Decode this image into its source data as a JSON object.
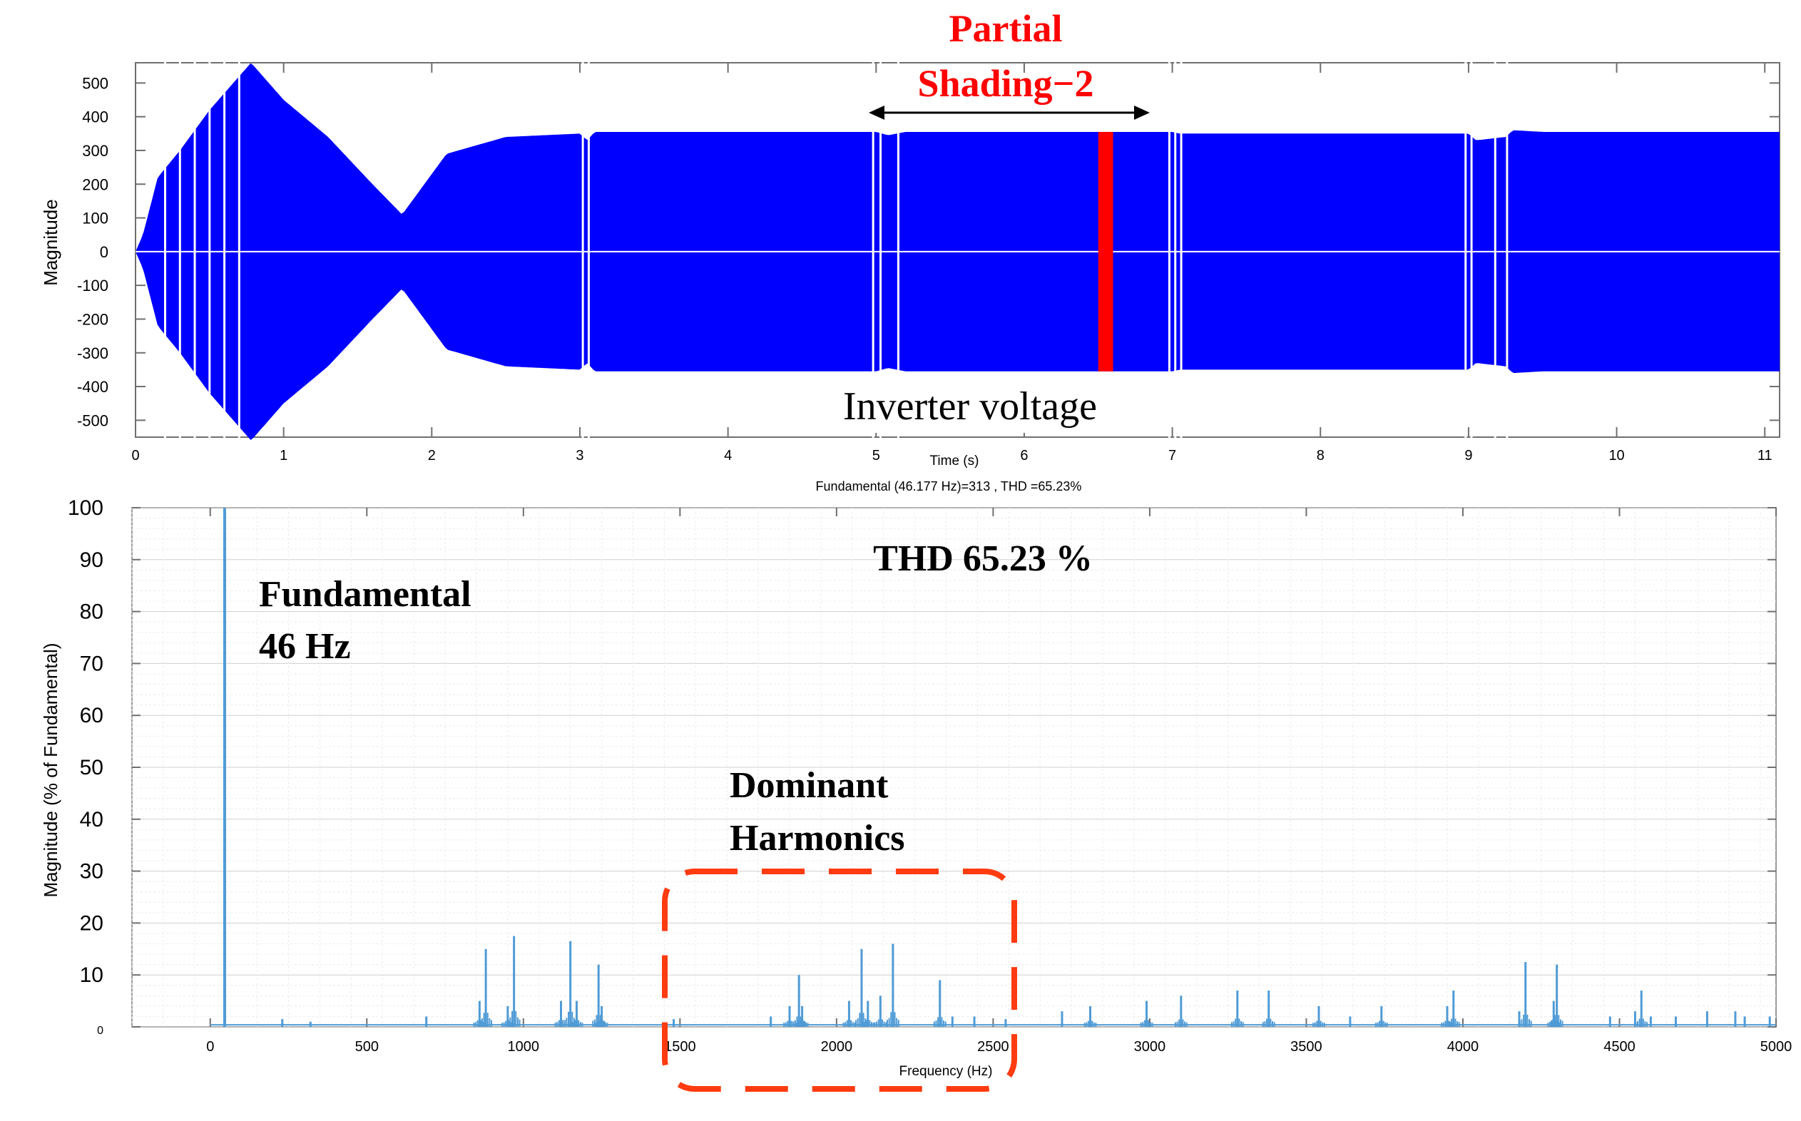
{
  "chart_data": [
    {
      "type": "line",
      "xlabel": "Time (s)",
      "ylabel": "Magnitude",
      "xlim": [
        0,
        11.1
      ],
      "ylim": [
        -550,
        560
      ],
      "xticks": [
        "0",
        "1",
        "2",
        "3",
        "4",
        "5",
        "6",
        "7",
        "8",
        "9",
        "10",
        "11"
      ],
      "yticks": [
        "500",
        "400",
        "300",
        "200",
        "100",
        "0",
        "-100",
        "-200",
        "-300",
        "-400",
        "-500"
      ],
      "series": [
        {
          "color": "#0000ff",
          "envelope_time": [
            0,
            0.05,
            0.15,
            0.3,
            0.5,
            0.7,
            0.78,
            1.0,
            1.3,
            1.6,
            1.8,
            1.9,
            2.1,
            2.5,
            3.0,
            3.05,
            3.1,
            5.0,
            5.08,
            5.2,
            7.0,
            7.05,
            9.0,
            9.05,
            9.25,
            9.3,
            9.5,
            11.1
          ],
          "envelope_amplitude": [
            0,
            50,
            220,
            300,
            420,
            520,
            560,
            450,
            340,
            200,
            110,
            170,
            290,
            340,
            350,
            330,
            355,
            355,
            345,
            355,
            355,
            350,
            350,
            330,
            340,
            360,
            355,
            355
          ]
        },
        {
          "name": "Partial Shading-2 segment",
          "color": "#ff0000",
          "x_range": [
            6.5,
            6.6
          ]
        }
      ],
      "annotations": {
        "partial_line1": "Partial",
        "partial_line2": "Shading−2",
        "inverter_voltage": "Inverter voltage"
      }
    },
    {
      "type": "bar",
      "title": "Fundamental (46.177 Hz)=313 , THD =65.23%",
      "xlabel": "Frequency  (Hz)",
      "ylabel": "Magnitude (% of Fundamental)",
      "xlim": [
        -250,
        5000
      ],
      "ylim": [
        0,
        100
      ],
      "xticks": [
        "0",
        "500",
        "1000",
        "1500",
        "2000",
        "2500",
        "3000",
        "3500",
        "4000",
        "4500",
        "5000"
      ],
      "yticks": [
        "100",
        "90",
        "80",
        "70",
        "60",
        "50",
        "40",
        "30",
        "20",
        "10",
        "0"
      ],
      "color": "#4f9bd6",
      "fundamental": {
        "x": 46,
        "y": 100
      },
      "spectrum_x": [
        230,
        320,
        690,
        860,
        880,
        950,
        970,
        1120,
        1150,
        1170,
        1240,
        1250,
        1480,
        1790,
        1850,
        1880,
        1890,
        2040,
        2080,
        2100,
        2140,
        2180,
        2330,
        2370,
        2440,
        2540,
        2720,
        2810,
        2990,
        3100,
        3280,
        3380,
        3540,
        3640,
        3740,
        3950,
        3970,
        4180,
        4200,
        4290,
        4300,
        4470,
        4550,
        4570,
        4600,
        4680,
        4780,
        4870,
        4900,
        4980
      ],
      "spectrum_y": [
        1.5,
        1,
        2,
        5,
        15,
        4,
        17.5,
        5,
        16.5,
        5,
        12,
        4,
        1.5,
        2,
        4,
        10,
        4,
        5,
        15,
        5,
        6,
        16,
        9,
        2,
        2,
        1.5,
        3,
        4,
        5,
        6,
        7,
        7,
        4,
        2,
        4,
        4,
        7,
        3,
        12.5,
        5,
        12,
        2,
        3,
        7,
        2,
        2,
        3,
        3,
        2,
        2
      ],
      "annotations": {
        "thd": "THD 65.23 %",
        "fundamental_line1": "Fundamental",
        "fundamental_line2": "46 Hz",
        "dominant_line1": "Dominant",
        "dominant_line2": "Harmonics"
      }
    }
  ]
}
